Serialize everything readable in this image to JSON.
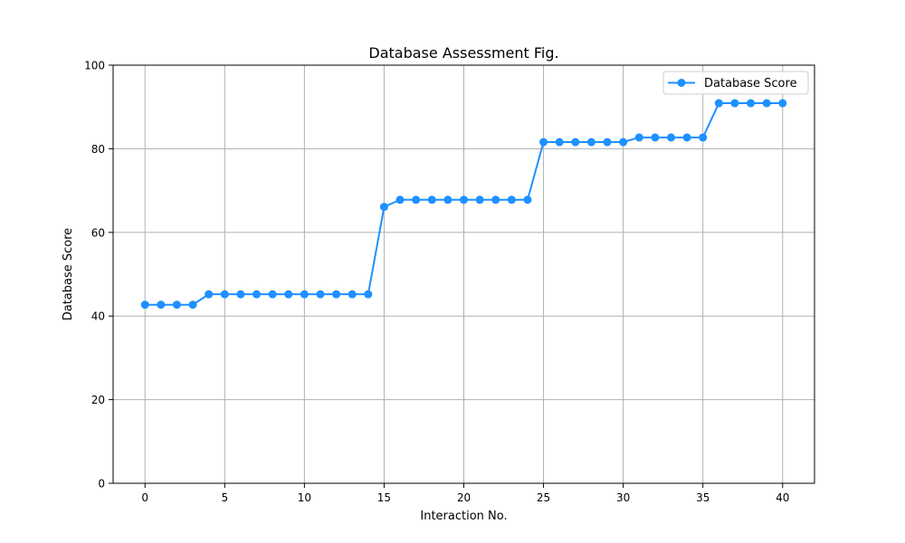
{
  "chart_data": {
    "type": "line",
    "title": "Database Assessment Fig.",
    "xlabel": "Interaction No.",
    "ylabel": "Database Score",
    "xlim": [
      -2,
      42
    ],
    "ylim": [
      0,
      100
    ],
    "xticks": [
      0,
      5,
      10,
      15,
      20,
      25,
      30,
      35,
      40
    ],
    "yticks": [
      0,
      20,
      40,
      60,
      80,
      100
    ],
    "grid": true,
    "legend_position": "top-right",
    "series": [
      {
        "name": "Database Score",
        "color": "#1e90ff",
        "marker": "circle",
        "x": [
          0,
          1,
          2,
          3,
          4,
          5,
          6,
          7,
          8,
          9,
          10,
          11,
          12,
          13,
          14,
          15,
          16,
          17,
          18,
          19,
          20,
          21,
          22,
          23,
          24,
          25,
          26,
          27,
          28,
          29,
          30,
          31,
          32,
          33,
          34,
          35,
          36,
          37,
          38,
          39,
          40
        ],
        "y": [
          42.7,
          42.7,
          42.7,
          42.7,
          45.2,
          45.2,
          45.2,
          45.2,
          45.2,
          45.2,
          45.2,
          45.2,
          45.2,
          45.2,
          45.2,
          66.1,
          67.8,
          67.8,
          67.8,
          67.8,
          67.8,
          67.8,
          67.8,
          67.8,
          67.8,
          81.6,
          81.6,
          81.6,
          81.6,
          81.6,
          81.6,
          82.7,
          82.7,
          82.7,
          82.7,
          82.7,
          90.9,
          90.9,
          90.9,
          90.9,
          90.9
        ]
      }
    ]
  }
}
